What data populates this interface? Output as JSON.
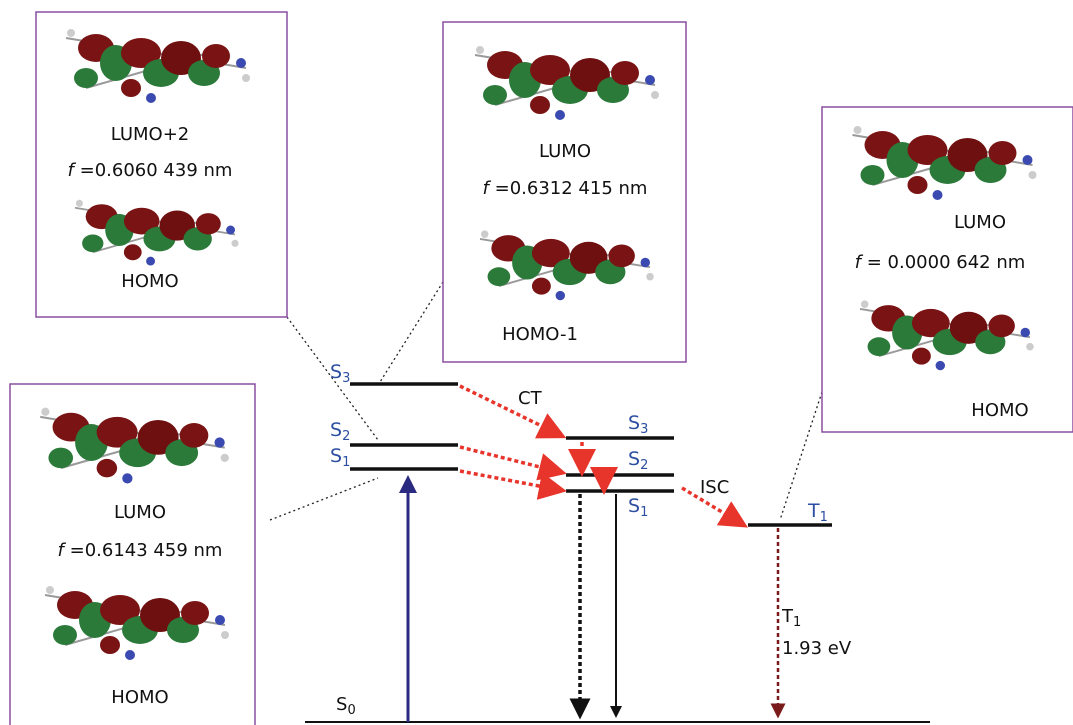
{
  "boxes": [
    {
      "upper_orbital": "LUMO+2",
      "f_symbol": "f",
      "f_value": "=0.6060",
      "wavelength": "439 nm",
      "lower_orbital": "HOMO"
    },
    {
      "upper_orbital": "LUMO",
      "f_symbol": "f",
      "f_value": "=0.6312",
      "wavelength": "415 nm",
      "lower_orbital": "HOMO-1"
    },
    {
      "upper_orbital": "LUMO",
      "f_symbol": "f",
      "f_value": "= 0.0000",
      "wavelength": "642 nm",
      "lower_orbital": "HOMO"
    },
    {
      "upper_orbital": "LUMO",
      "f_symbol": "f",
      "f_value": "=0.6143",
      "wavelength": "459 nm",
      "lower_orbital": "HOMO"
    }
  ],
  "singlets_left": [
    {
      "letter": "S",
      "index": "3"
    },
    {
      "letter": "S",
      "index": "2"
    },
    {
      "letter": "S",
      "index": "1"
    }
  ],
  "singlets_right": [
    {
      "letter": "S",
      "index": "3"
    },
    {
      "letter": "S",
      "index": "2"
    },
    {
      "letter": "S",
      "index": "1"
    }
  ],
  "triplet": {
    "letter": "T",
    "index": "1"
  },
  "ground": {
    "letter": "S",
    "index": "0"
  },
  "ct_label": "CT",
  "isc_label": "ISC",
  "emission": {
    "state": {
      "letter": "T",
      "index": "1"
    },
    "energy": "1.93 eV"
  }
}
